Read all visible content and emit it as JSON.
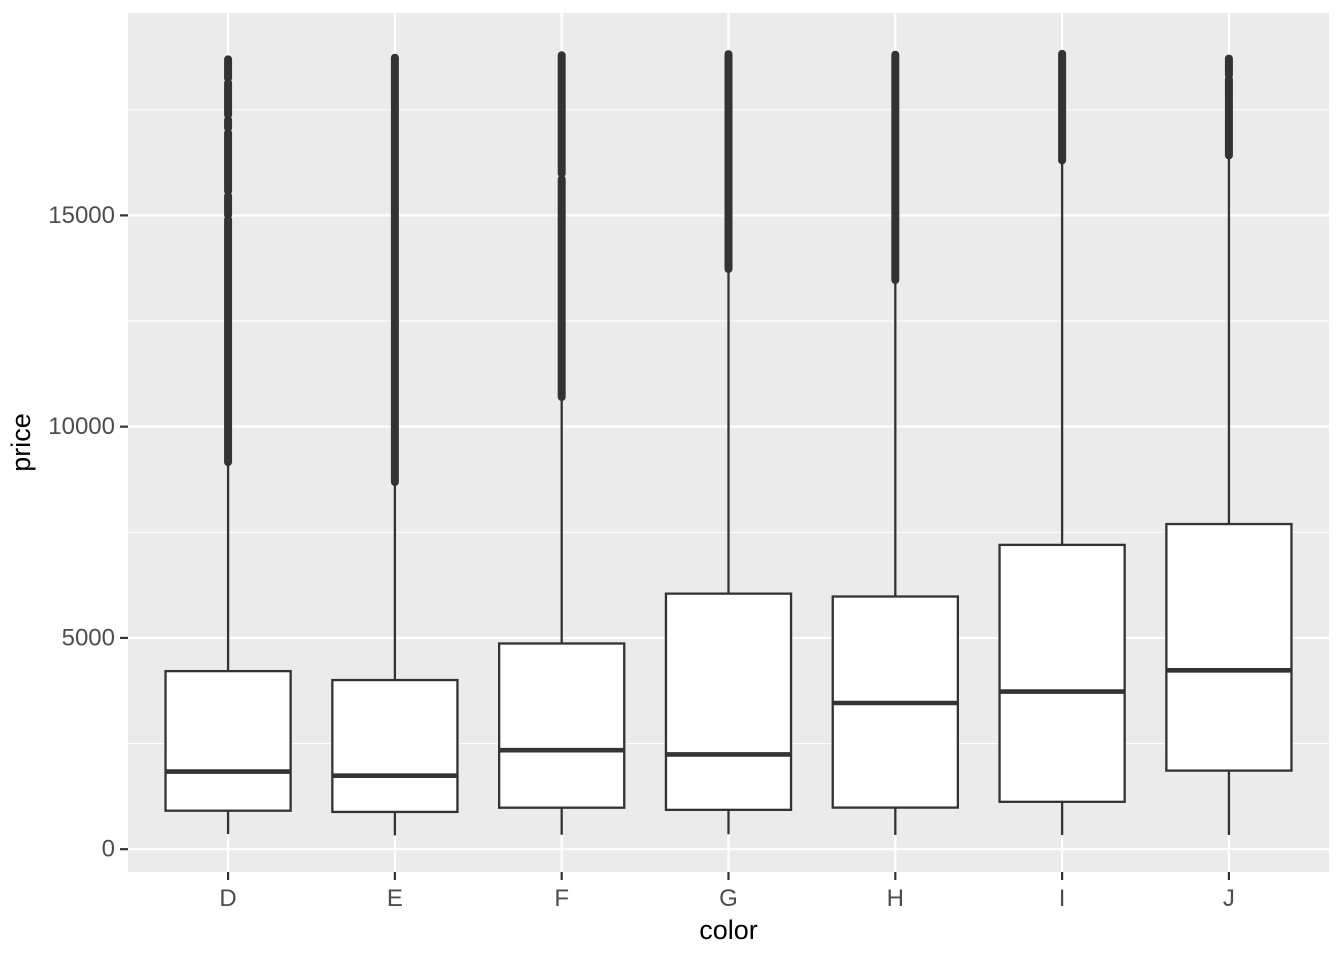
{
  "chart_data": {
    "type": "boxplot",
    "title": "",
    "xlabel": "color",
    "ylabel": "price",
    "categories": [
      "D",
      "E",
      "F",
      "G",
      "H",
      "I",
      "J"
    ],
    "ylim": [
      -540,
      19790
    ],
    "yticks": [
      0,
      5000,
      10000,
      15000
    ],
    "ytick_labels": [
      "0",
      "5000",
      "10000",
      "15000"
    ],
    "yticks_minor": [
      2500,
      7500,
      12500,
      17500
    ],
    "grid": "on",
    "legend": "none",
    "series": [
      {
        "category": "D",
        "whisker_low": 357,
        "q1": 911,
        "median": 1838,
        "q3": 4214,
        "whisker_high": 9155,
        "outlier_segments": [
          [
            9160,
            14900
          ],
          [
            15010,
            15460
          ],
          [
            15580,
            16950
          ],
          [
            17070,
            17260
          ],
          [
            17380,
            18140
          ],
          [
            18250,
            18693
          ]
        ]
      },
      {
        "category": "E",
        "whisker_low": 326,
        "q1": 882,
        "median": 1739,
        "q3": 4003,
        "whisker_high": 8680,
        "outlier_segments": [
          [
            8690,
            18731
          ]
        ]
      },
      {
        "category": "F",
        "whisker_low": 342,
        "q1": 982,
        "median": 2343,
        "q3": 4868,
        "whisker_high": 10690,
        "outlier_segments": [
          [
            10700,
            15860
          ],
          [
            15990,
            18791
          ]
        ]
      },
      {
        "category": "G",
        "whisker_low": 354,
        "q1": 931,
        "median": 2242,
        "q3": 6048,
        "whisker_high": 13720,
        "outlier_segments": [
          [
            13730,
            18818
          ]
        ]
      },
      {
        "category": "H",
        "whisker_low": 337,
        "q1": 984,
        "median": 3460,
        "q3": 5980,
        "whisker_high": 13460,
        "outlier_segments": [
          [
            13470,
            18803
          ]
        ]
      },
      {
        "category": "I",
        "whisker_low": 334,
        "q1": 1121,
        "median": 3730,
        "q3": 7202,
        "whisker_high": 16290,
        "outlier_segments": [
          [
            16300,
            18823
          ]
        ]
      },
      {
        "category": "J",
        "whisker_low": 335,
        "q1": 1860,
        "median": 4234,
        "q3": 7695,
        "whisker_high": 16400,
        "outlier_segments": [
          [
            16420,
            17310
          ],
          [
            17350,
            17690
          ],
          [
            17730,
            18220
          ],
          [
            18320,
            18710
          ]
        ]
      }
    ],
    "style": {
      "panel_background": "#ebebeb",
      "grid_color": "#ffffff",
      "box_stroke": "#333333",
      "box_fill": "#ffffff",
      "axis_text_color": "#4d4d4d",
      "axis_title_color": "#000000",
      "tick_mark_color": "#333333"
    }
  }
}
